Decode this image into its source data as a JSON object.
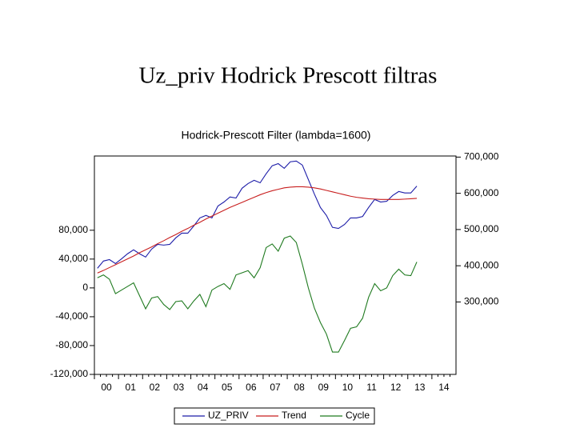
{
  "slide_title": "Uz_priv Hodrick Prescott filtras",
  "chart_data": {
    "type": "line",
    "title": "Hodrick-Prescott Filter (lambda=1600)",
    "categories": [
      "00",
      null,
      null,
      null,
      "01",
      null,
      null,
      null,
      "02",
      null,
      null,
      null,
      "03",
      null,
      null,
      null,
      "04",
      null,
      null,
      null,
      "05",
      null,
      null,
      null,
      "06",
      null,
      null,
      null,
      "07",
      null,
      null,
      null,
      "08",
      null,
      null,
      null,
      "09",
      null,
      null,
      null,
      "10",
      null,
      null,
      null,
      "11",
      null,
      null,
      null,
      "12",
      null,
      null,
      null,
      "13",
      null,
      null,
      null,
      "14",
      null,
      null,
      null
    ],
    "series": [
      {
        "name": "UZ_PRIV",
        "color": "#1c1ca8",
        "axis": "y2",
        "values": [
          393000,
          413000,
          417000,
          406000,
          419000,
          433000,
          444000,
          433000,
          424000,
          446000,
          459000,
          457000,
          459000,
          477000,
          490000,
          490000,
          510000,
          532000,
          539000,
          532000,
          565000,
          576000,
          590000,
          587000,
          614000,
          627000,
          636000,
          629000,
          654000,
          676000,
          682000,
          669000,
          687000,
          689000,
          678000,
          638000,
          598000,
          561000,
          539000,
          506000,
          503000,
          514000,
          532000,
          532000,
          536000,
          561000,
          583000,
          576000,
          578000,
          594000,
          605000,
          601000,
          601000,
          620000,
          null,
          null,
          null,
          null,
          null,
          null
        ]
      },
      {
        "name": "Trend",
        "color": "#c81e1e",
        "axis": "y2",
        "values": [
          380000,
          387000,
          395000,
          403000,
          411000,
          419000,
          427000,
          436000,
          444000,
          452000,
          461000,
          469000,
          478000,
          486000,
          495000,
          503000,
          512000,
          520000,
          529000,
          537000,
          545000,
          553000,
          561000,
          568000,
          575000,
          582000,
          589000,
          596000,
          602000,
          607000,
          611000,
          615000,
          617000,
          618000,
          618000,
          617000,
          615000,
          612000,
          608000,
          604000,
          600000,
          596000,
          592000,
          589000,
          587000,
          585000,
          584000,
          583000,
          583000,
          583000,
          583000,
          584000,
          585000,
          586000,
          null,
          null,
          null,
          null,
          null,
          null
        ]
      },
      {
        "name": "Cycle",
        "color": "#1f7a1f",
        "values": [
          14000,
          18000,
          12000,
          -8000,
          -3000,
          2000,
          7000,
          -11000,
          -29000,
          -14000,
          -12000,
          -23000,
          -30000,
          -19000,
          -18000,
          -29000,
          -18000,
          -9000,
          -26000,
          -3000,
          2000,
          6000,
          -2000,
          18000,
          21000,
          24000,
          14000,
          28000,
          56000,
          61000,
          51000,
          69000,
          72000,
          63000,
          33000,
          0,
          -28000,
          -48000,
          -64000,
          -89000,
          -89000,
          -73000,
          -56000,
          -54000,
          -42000,
          -13000,
          6000,
          -4000,
          0,
          17000,
          26000,
          18000,
          17000,
          36000,
          null,
          null,
          null,
          null,
          null,
          null
        ]
      }
    ],
    "ylim": [
      -120000,
      183000
    ],
    "yticks": [
      {
        "value": -120000,
        "label": "-120,000"
      },
      {
        "value": -80000,
        "label": "-80,000"
      },
      {
        "value": -40000,
        "label": "-40,000"
      },
      0,
      {
        "value": 40000,
        "label": "40,000"
      },
      {
        "value": 80000,
        "label": "80,000"
      }
    ],
    "y2lim": [
      100000,
      703000
    ],
    "y2ticks": [
      {
        "value": 300000,
        "label": "300,000"
      },
      {
        "value": 400000,
        "label": "400,000"
      },
      {
        "value": 500000,
        "label": "500,000"
      },
      {
        "value": 600000,
        "label": "600,000"
      },
      {
        "value": 700000,
        "label": "700,000"
      }
    ],
    "legend": "bottom"
  }
}
